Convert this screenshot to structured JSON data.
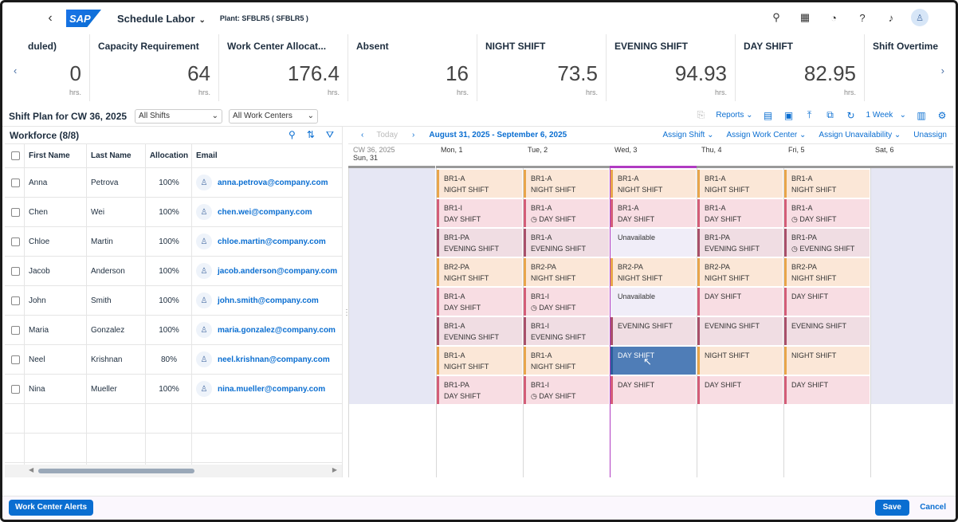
{
  "shell": {
    "app_title": "Schedule Labor",
    "plant": "Plant: SFBLR5 ( SFBLR5 )",
    "logo_text": "SAP"
  },
  "kpis": [
    {
      "title": "duled)",
      "value": "0",
      "unit": "hrs."
    },
    {
      "title": "Capacity Requirement",
      "value": "64",
      "unit": "hrs."
    },
    {
      "title": "Work Center Allocat...",
      "value": "176.4",
      "unit": "hrs."
    },
    {
      "title": "Absent",
      "value": "16",
      "unit": "hrs."
    },
    {
      "title": "NIGHT SHIFT",
      "value": "73.5",
      "unit": "hrs."
    },
    {
      "title": "EVENING SHIFT",
      "value": "94.93",
      "unit": "hrs."
    },
    {
      "title": "DAY SHIFT",
      "value": "82.95",
      "unit": "hrs."
    },
    {
      "title": "Shift Overtime",
      "value": "",
      "unit": ""
    }
  ],
  "toolbar": {
    "title": "Shift Plan for CW 36, 2025",
    "shift_filter": "All Shifts",
    "wc_filter": "All Work Centers",
    "reports": "Reports",
    "week": "1 Week"
  },
  "workforce": {
    "title": "Workforce (8/8)",
    "columns": [
      "First Name",
      "Last Name",
      "Allocation",
      "Email"
    ]
  },
  "people": [
    {
      "first": "Anna",
      "last": "Petrova",
      "alloc": "100%",
      "email": "anna.petrova@company.com"
    },
    {
      "first": "Chen",
      "last": "Wei",
      "alloc": "100%",
      "email": "chen.wei@company.com"
    },
    {
      "first": "Chloe",
      "last": "Martin",
      "alloc": "100%",
      "email": "chloe.martin@company.com"
    },
    {
      "first": "Jacob",
      "last": "Anderson",
      "alloc": "100%",
      "email": "jacob.anderson@company.com"
    },
    {
      "first": "John",
      "last": "Smith",
      "alloc": "100%",
      "email": "john.smith@company.com"
    },
    {
      "first": "Maria",
      "last": "Gonzalez",
      "alloc": "100%",
      "email": "maria.gonzalez@company.com"
    },
    {
      "first": "Neel",
      "last": "Krishnan",
      "alloc": "80%",
      "email": "neel.krishnan@company.com"
    },
    {
      "first": "Nina",
      "last": "Mueller",
      "alloc": "100%",
      "email": "nina.mueller@company.com"
    }
  ],
  "calendar": {
    "today": "Today",
    "range": "August 31, 2025 - September 6, 2025",
    "actions": [
      "Assign Shift",
      "Assign Work Center",
      "Assign Unavailability",
      "Unassign"
    ],
    "days": [
      {
        "l1": "CW 36, 2025",
        "l2": "Sun, 31"
      },
      {
        "l1": "",
        "l2": "Mon, 1"
      },
      {
        "l1": "",
        "l2": "Tue, 2"
      },
      {
        "l1": "",
        "l2": "Wed, 3"
      },
      {
        "l1": "",
        "l2": "Thu, 4"
      },
      {
        "l1": "",
        "l2": "Fri, 5"
      },
      {
        "l1": "",
        "l2": "Sat, 6"
      }
    ],
    "grid": [
      [
        [
          "BR1-A",
          "NIGHT SHIFT",
          "night",
          0
        ],
        [
          "BR1-A",
          "NIGHT SHIFT",
          "night",
          0
        ],
        [
          "BR1-A",
          "NIGHT SHIFT",
          "night",
          0
        ],
        [
          "BR1-A",
          "NIGHT SHIFT",
          "night",
          0
        ],
        [
          "BR1-A",
          "NIGHT SHIFT",
          "night",
          0
        ]
      ],
      [
        [
          "BR1-I",
          "DAY SHIFT",
          "day",
          0
        ],
        [
          "BR1-A",
          "DAY SHIFT",
          "day",
          1
        ],
        [
          "BR1-A",
          "DAY SHIFT",
          "day",
          0
        ],
        [
          "BR1-A",
          "DAY SHIFT",
          "day",
          0
        ],
        [
          "BR1-A",
          "DAY SHIFT",
          "day",
          1
        ]
      ],
      [
        [
          "BR1-PA",
          "EVENING SHIFT",
          "evening",
          0
        ],
        [
          "BR1-A",
          "EVENING SHIFT",
          "evening",
          0
        ],
        [
          "",
          "Unavailable",
          "unav",
          0
        ],
        [
          "BR1-PA",
          "EVENING SHIFT",
          "evening",
          0
        ],
        [
          "BR1-PA",
          "EVENING SHIFT",
          "evening",
          1
        ]
      ],
      [
        [
          "BR2-PA",
          "NIGHT SHIFT",
          "night",
          0
        ],
        [
          "BR2-PA",
          "NIGHT SHIFT",
          "night",
          0
        ],
        [
          "BR2-PA",
          "NIGHT SHIFT",
          "night",
          0
        ],
        [
          "BR2-PA",
          "NIGHT SHIFT",
          "night",
          0
        ],
        [
          "BR2-PA",
          "NIGHT SHIFT",
          "night",
          0
        ]
      ],
      [
        [
          "BR1-A",
          "DAY SHIFT",
          "day",
          0
        ],
        [
          "BR1-I",
          "DAY SHIFT",
          "day",
          1
        ],
        [
          "",
          "Unavailable",
          "unav",
          0
        ],
        [
          "",
          "DAY SHIFT",
          "day",
          0
        ],
        [
          "",
          "DAY SHIFT",
          "day",
          0
        ]
      ],
      [
        [
          "BR1-A",
          "EVENING SHIFT",
          "evening",
          0
        ],
        [
          "BR1-I",
          "EVENING SHIFT",
          "evening",
          0
        ],
        [
          "",
          "EVENING SHIFT",
          "evening",
          0
        ],
        [
          "",
          "EVENING SHIFT",
          "evening",
          0
        ],
        [
          "",
          "EVENING SHIFT",
          "evening",
          0
        ]
      ],
      [
        [
          "BR1-A",
          "NIGHT SHIFT",
          "night",
          0
        ],
        [
          "BR1-A",
          "NIGHT SHIFT",
          "night",
          0
        ],
        [
          "",
          "DAY SHIFT",
          "sel",
          0
        ],
        [
          "",
          "NIGHT SHIFT",
          "night",
          0
        ],
        [
          "",
          "NIGHT SHIFT",
          "night",
          0
        ]
      ],
      [
        [
          "BR1-PA",
          "DAY SHIFT",
          "day",
          0
        ],
        [
          "BR1-I",
          "DAY SHIFT",
          "day",
          1
        ],
        [
          "",
          "DAY SHIFT",
          "day",
          0
        ],
        [
          "",
          "DAY SHIFT",
          "day",
          0
        ],
        [
          "",
          "DAY SHIFT",
          "day",
          0
        ]
      ]
    ]
  },
  "footer": {
    "alerts": "Work Center Alerts",
    "save": "Save",
    "cancel": "Cancel"
  }
}
